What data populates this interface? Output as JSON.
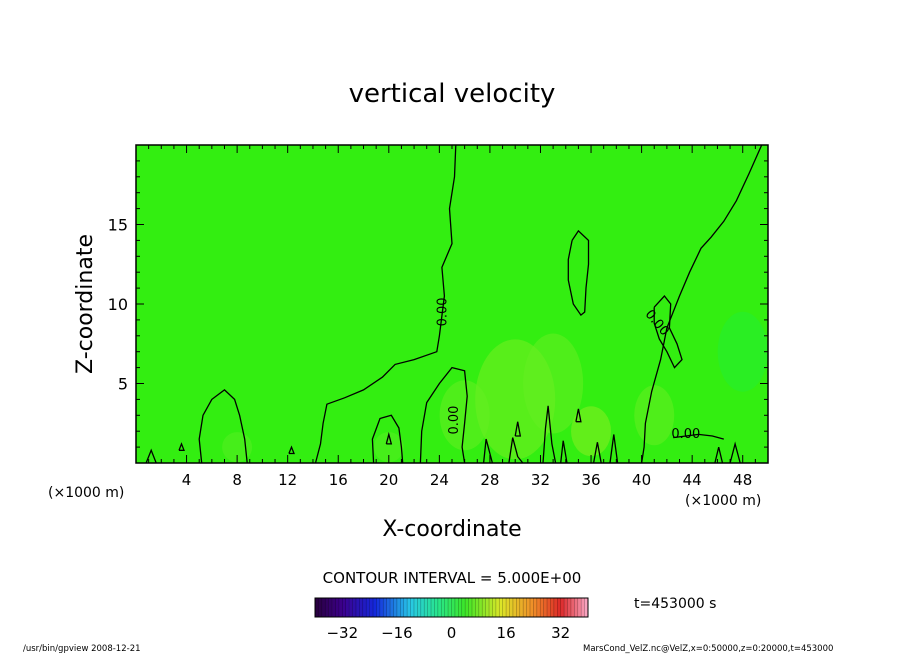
{
  "chart_data": {
    "type": "heatmap",
    "title": "vertical velocity",
    "xlabel": "X-coordinate",
    "ylabel": "Z-coordinate",
    "x_unit_left": "(×1000 m)",
    "x_unit_right": "(×1000 m)",
    "xlim": [
      0,
      50
    ],
    "ylim": [
      0,
      20
    ],
    "x_ticks": [
      4,
      8,
      12,
      16,
      20,
      24,
      28,
      32,
      36,
      40,
      44,
      48
    ],
    "y_ticks": [
      5,
      10,
      15
    ],
    "contour_interval_text": "CONTOUR INTERVAL = 5.000E+00",
    "contour_labels": [
      {
        "text": "0.00",
        "x": 24.3,
        "z": 9.5,
        "rotate": -90
      },
      {
        "text": "0.00",
        "x": 25.2,
        "z": 2.7,
        "rotate": -90
      },
      {
        "text": "0.00",
        "x": 41.2,
        "z": 8.8,
        "rotate": 50
      },
      {
        "text": "0.00",
        "x": 43.5,
        "z": 1.8,
        "rotate": 0
      }
    ],
    "contour_lines": [
      [
        [
          25.3,
          20
        ],
        [
          25.2,
          18
        ],
        [
          24.8,
          16
        ],
        [
          25.0,
          13.8
        ],
        [
          24.2,
          12.3
        ],
        [
          24.4,
          10.5
        ],
        [
          24.0,
          8.0
        ],
        [
          23.8,
          7.0
        ],
        [
          22.0,
          6.5
        ],
        [
          20.5,
          6.2
        ],
        [
          19.5,
          5.4
        ],
        [
          18.0,
          4.6
        ],
        [
          16.5,
          4.1
        ],
        [
          15.1,
          3.7
        ],
        [
          14.8,
          2.5
        ],
        [
          14.6,
          1.2
        ],
        [
          14.2,
          0
        ]
      ],
      [
        [
          49.5,
          20
        ],
        [
          48.5,
          18.2
        ],
        [
          47.5,
          16.5
        ],
        [
          46.5,
          15.2
        ],
        [
          45.5,
          14.2
        ],
        [
          44.7,
          13.5
        ],
        [
          43.8,
          12.0
        ],
        [
          43.0,
          10.5
        ],
        [
          42.0,
          8.5
        ],
        [
          41.5,
          6.5
        ],
        [
          40.8,
          4.5
        ],
        [
          40.3,
          2.5
        ],
        [
          40.2,
          1.0
        ],
        [
          40.0,
          0
        ]
      ],
      [
        [
          34.5,
          14.0
        ],
        [
          35.0,
          14.6
        ],
        [
          35.8,
          14.0
        ],
        [
          35.8,
          12.5
        ],
        [
          35.6,
          11.0
        ],
        [
          35.5,
          9.5
        ],
        [
          35.2,
          9.3
        ],
        [
          34.6,
          10.0
        ],
        [
          34.2,
          11.5
        ],
        [
          34.2,
          12.8
        ],
        [
          34.5,
          14.0
        ]
      ],
      [
        [
          5.2,
          0
        ],
        [
          5.0,
          1.5
        ],
        [
          5.3,
          3.0
        ],
        [
          6.0,
          4.0
        ],
        [
          7.0,
          4.6
        ],
        [
          7.8,
          4.0
        ],
        [
          8.2,
          3.0
        ],
        [
          8.6,
          1.5
        ],
        [
          8.8,
          0
        ]
      ],
      [
        [
          18.8,
          0
        ],
        [
          18.7,
          1.5
        ],
        [
          19.3,
          2.8
        ],
        [
          20.2,
          3.0
        ],
        [
          20.8,
          2.2
        ],
        [
          21.0,
          1.0
        ],
        [
          21.1,
          0
        ]
      ],
      [
        [
          22.5,
          0
        ],
        [
          22.6,
          2.0
        ],
        [
          23.0,
          3.8
        ],
        [
          24.0,
          5.0
        ],
        [
          25.0,
          6.0
        ],
        [
          26.0,
          5.8
        ],
        [
          26.2,
          4.2
        ],
        [
          26.0,
          2.5
        ],
        [
          25.8,
          1.0
        ],
        [
          26.0,
          0
        ]
      ],
      [
        [
          41.0,
          9.8
        ],
        [
          41.8,
          10.5
        ],
        [
          42.3,
          10.0
        ],
        [
          42.2,
          8.5
        ],
        [
          42.8,
          7.5
        ],
        [
          43.2,
          6.5
        ],
        [
          42.6,
          6.0
        ],
        [
          42.0,
          7.0
        ],
        [
          41.4,
          7.8
        ],
        [
          41.0,
          8.8
        ],
        [
          41.0,
          9.8
        ]
      ],
      [
        [
          27.5,
          0
        ],
        [
          27.7,
          1.5
        ],
        [
          28.2,
          0
        ]
      ],
      [
        [
          29.5,
          0
        ],
        [
          29.8,
          1.6
        ],
        [
          30.2,
          0.4
        ],
        [
          30.6,
          0
        ]
      ],
      [
        [
          32.2,
          0
        ],
        [
          32.4,
          2.2
        ],
        [
          32.6,
          3.6
        ],
        [
          32.9,
          1.2
        ],
        [
          33.2,
          0
        ]
      ],
      [
        [
          33.6,
          0
        ],
        [
          33.8,
          1.4
        ],
        [
          34.1,
          0
        ]
      ],
      [
        [
          36.2,
          0
        ],
        [
          36.5,
          1.3
        ],
        [
          36.8,
          0
        ]
      ],
      [
        [
          37.5,
          0
        ],
        [
          37.8,
          1.8
        ],
        [
          38.1,
          0
        ]
      ],
      [
        [
          45.8,
          0
        ],
        [
          46.1,
          1.0
        ],
        [
          46.4,
          0
        ]
      ],
      [
        [
          47.0,
          0
        ],
        [
          47.4,
          1.2
        ],
        [
          47.8,
          0
        ]
      ],
      [
        [
          0.8,
          0
        ],
        [
          1.2,
          0.8
        ],
        [
          1.6,
          0
        ]
      ],
      [
        [
          3.4,
          0.8
        ],
        [
          3.6,
          1.2
        ],
        [
          3.8,
          0.8
        ],
        [
          3.4,
          0.8
        ]
      ],
      [
        [
          12.1,
          0.6
        ],
        [
          12.3,
          1.0
        ],
        [
          12.5,
          0.6
        ],
        [
          12.1,
          0.6
        ]
      ],
      [
        [
          19.8,
          1.2
        ],
        [
          20.0,
          1.8
        ],
        [
          20.2,
          1.2
        ],
        [
          19.8,
          1.2
        ]
      ],
      [
        [
          30.0,
          1.7
        ],
        [
          30.2,
          2.6
        ],
        [
          30.4,
          1.7
        ],
        [
          30.0,
          1.7
        ]
      ],
      [
        [
          34.8,
          2.6
        ],
        [
          35.0,
          3.4
        ],
        [
          35.2,
          2.6
        ],
        [
          34.8,
          2.6
        ]
      ],
      [
        [
          42.5,
          1.6
        ],
        [
          44.5,
          1.8
        ],
        [
          45.6,
          1.7
        ],
        [
          46.5,
          1.5
        ]
      ]
    ],
    "colorbar": {
      "min": -40,
      "max": 40,
      "ticks": [
        -32,
        -16,
        0,
        16,
        32
      ],
      "scheme": "rainbow"
    },
    "field_color": "#33ee11",
    "time_label": "t=453000 s"
  },
  "footer": {
    "left": "/usr/bin/gpview   2008-12-21",
    "right": "MarsCond_VelZ.nc@VelZ,x=0:50000,z=0:20000,t=453000"
  }
}
